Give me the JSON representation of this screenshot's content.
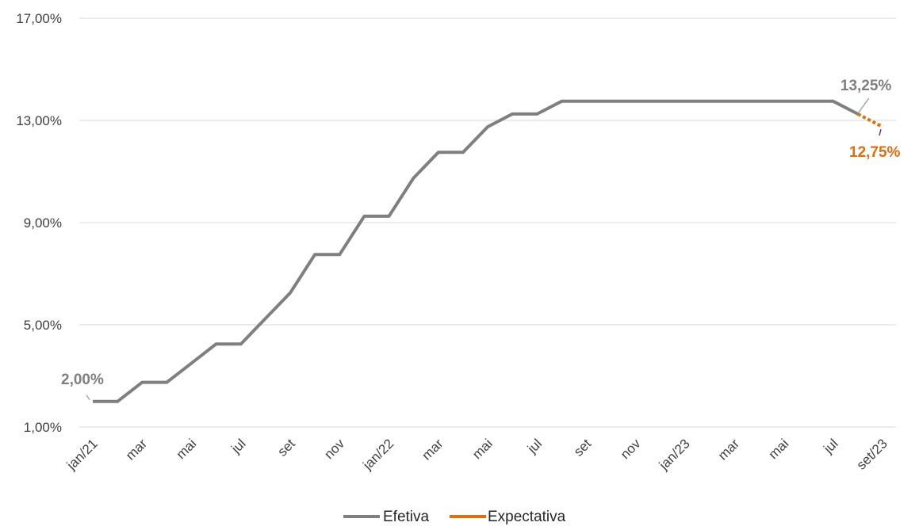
{
  "chart_data": {
    "type": "line",
    "title": "",
    "xlabel": "",
    "ylabel": "",
    "ylim": [
      1,
      17
    ],
    "y_ticks": [
      "1,00%",
      "5,00%",
      "9,00%",
      "13,00%",
      "17,00%"
    ],
    "y_tick_values": [
      1,
      5,
      9,
      13,
      17
    ],
    "x_tick_labels": [
      "jan/21",
      "mar",
      "mai",
      "jul",
      "set",
      "nov",
      "jan/22",
      "mar",
      "mai",
      "jul",
      "set",
      "nov",
      "jan/23",
      "mar",
      "mai",
      "jul",
      "set/23"
    ],
    "x_tick_indices": [
      0,
      2,
      4,
      6,
      8,
      10,
      12,
      14,
      16,
      18,
      20,
      22,
      24,
      26,
      28,
      30,
      32
    ],
    "x": [
      "jan/21",
      "fev/21",
      "mar/21",
      "abr/21",
      "mai/21",
      "jun/21",
      "jul/21",
      "ago/21",
      "set/21",
      "out/21",
      "nov/21",
      "dez/21",
      "jan/22",
      "fev/22",
      "mar/22",
      "abr/22",
      "mai/22",
      "jun/22",
      "jul/22",
      "ago/22",
      "set/22",
      "out/22",
      "nov/22",
      "dez/22",
      "jan/23",
      "fev/23",
      "mar/23",
      "abr/23",
      "mai/23",
      "jun/23",
      "jul/23",
      "ago/23",
      "set/23"
    ],
    "series": [
      {
        "name": "Efetiva",
        "color": "#7f7f7f",
        "values": [
          2.0,
          2.0,
          2.75,
          2.75,
          3.5,
          4.25,
          4.25,
          5.25,
          6.25,
          7.75,
          7.75,
          9.25,
          9.25,
          10.75,
          11.75,
          11.75,
          12.75,
          13.25,
          13.25,
          13.75,
          13.75,
          13.75,
          13.75,
          13.75,
          13.75,
          13.75,
          13.75,
          13.75,
          13.75,
          13.75,
          13.75,
          13.25,
          null
        ]
      },
      {
        "name": "Expectativa",
        "color": "#e46c0a",
        "values": [
          null,
          null,
          null,
          null,
          null,
          null,
          null,
          null,
          null,
          null,
          null,
          null,
          null,
          null,
          null,
          null,
          null,
          null,
          null,
          null,
          null,
          null,
          null,
          null,
          null,
          null,
          null,
          null,
          null,
          null,
          null,
          13.25,
          12.75
        ]
      }
    ],
    "annotations": [
      {
        "text": "2,00%",
        "index": 0,
        "value": 2.0,
        "color": "#7f7f7f"
      },
      {
        "text": "13,25%",
        "index": 31,
        "value": 13.25,
        "color": "#7f7f7f"
      },
      {
        "text": "12,75%",
        "index": 32,
        "value": 12.75,
        "color": "#e46c0a"
      }
    ],
    "grid": true,
    "legend_position": "bottom"
  },
  "colors": {
    "grid": "#d9d9d9",
    "axis_text": "#404040",
    "expectativa_marker": "#7030a0"
  }
}
